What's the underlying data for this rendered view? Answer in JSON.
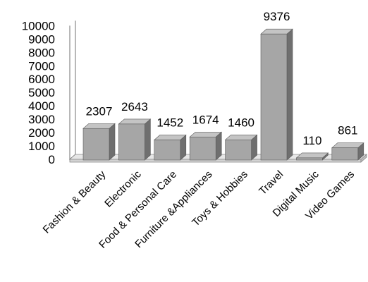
{
  "chart_data": {
    "type": "bar",
    "style": "3d-column",
    "categories": [
      "Fashion & Beauty",
      "Electronic",
      "Food & Personal Care",
      "Furniture &Appliances",
      "Toys & Hobbies",
      "Travel",
      "Digital Music",
      "Video Games"
    ],
    "values": [
      2307,
      2643,
      1452,
      1674,
      1460,
      9376,
      110,
      861
    ],
    "data_labels": [
      "2307",
      "2643",
      "1452",
      "1674",
      "1460",
      "9376",
      "110",
      "861"
    ],
    "y_ticks": [
      "0",
      "1000",
      "2000",
      "3000",
      "4000",
      "5000",
      "6000",
      "7000",
      "8000",
      "9000",
      "10000"
    ],
    "ylim": [
      0,
      10000
    ],
    "title": "",
    "xlabel": "",
    "ylabel": "",
    "grid": false,
    "legend": "none",
    "colors": {
      "bar_front": "#a6a6a6",
      "bar_side": "#6f6f6f",
      "bar_top": "#c4c4c4",
      "floor": "#e6e6e6",
      "axis": "#888888"
    }
  }
}
